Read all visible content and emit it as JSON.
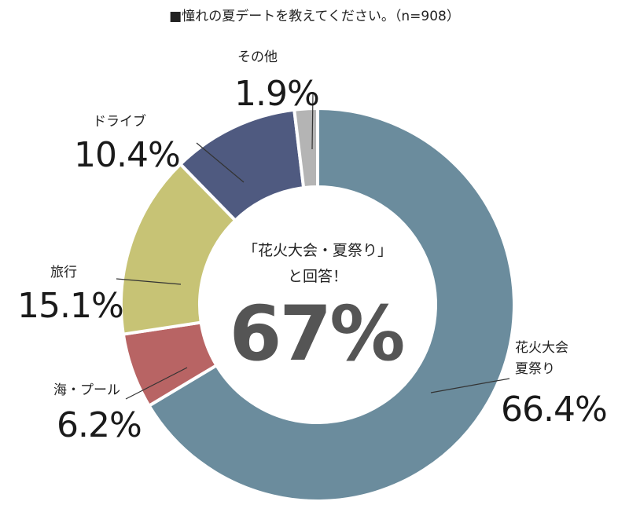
{
  "chart_data": {
    "type": "pie",
    "variant": "donut",
    "title": "■憧れの夏デートを教えてください。（n=908）",
    "categories": [
      "花火大会・夏祭り",
      "海・プール",
      "旅行",
      "ドライブ",
      "その他"
    ],
    "values": [
      66.4,
      6.2,
      15.1,
      10.4,
      1.9
    ],
    "unit": "%",
    "series": [
      {
        "label_lines": [
          "花火大会",
          "夏祭り"
        ],
        "value_label": "66.4%",
        "value": 66.4,
        "color": "#6b8c9d"
      },
      {
        "label_lines": [
          "海・プール"
        ],
        "value_label": "6.2%",
        "value": 6.2,
        "color": "#b86464"
      },
      {
        "label_lines": [
          "旅行"
        ],
        "value_label": "15.1%",
        "value": 15.1,
        "color": "#c7c375"
      },
      {
        "label_lines": [
          "ドライブ"
        ],
        "value_label": "10.4%",
        "value": 10.4,
        "color": "#4f5a80"
      },
      {
        "label_lines": [
          "その他"
        ],
        "value_label": "1.9%",
        "value": 1.9,
        "color": "#b4b4b4"
      }
    ],
    "center_text": {
      "line1": "「花火大会・夏祭り」",
      "line2": "と回答！",
      "big": "67%"
    },
    "legend": "none"
  }
}
